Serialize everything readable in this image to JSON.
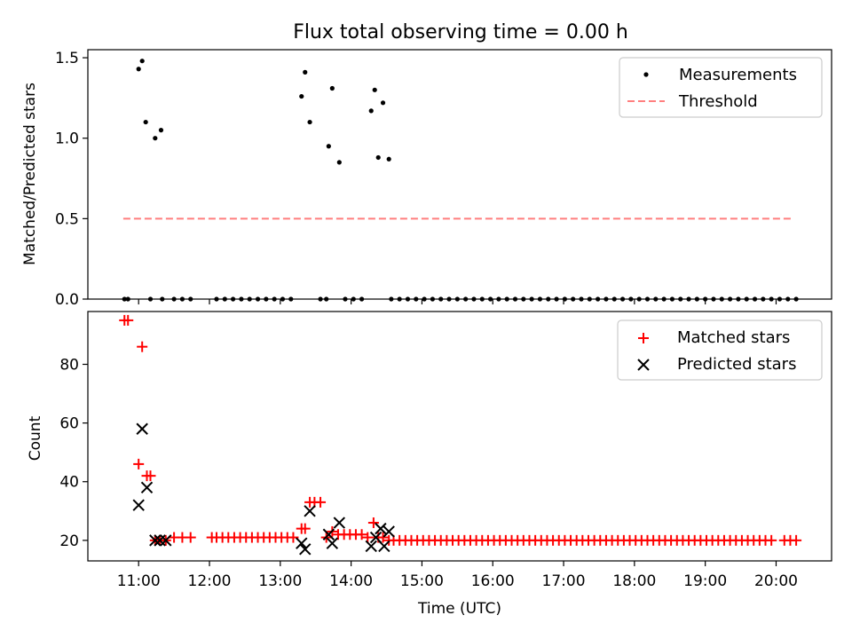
{
  "chart_data": [
    {
      "type": "scatter",
      "title": "Flux total observing time = 0.00 h",
      "xlabel": "",
      "ylabel": "Matched/Predicted stars",
      "xlim": [
        "10:17",
        "20:47"
      ],
      "ylim": [
        0,
        1.55
      ],
      "yticks": [
        0.0,
        0.5,
        1.0,
        1.5
      ],
      "ytick_labels": [
        "0.0",
        "0.5",
        "1.0",
        "1.5"
      ],
      "legend_position": "upper right",
      "legend": [
        {
          "label": "Measurements",
          "marker": "dot",
          "color": "#000000"
        },
        {
          "label": "Threshold",
          "marker": "dashed-line",
          "color": "#ff7f7f"
        }
      ],
      "series": [
        {
          "name": "Measurements",
          "color": "#000000",
          "points": [
            [
              "11:00",
              1.43
            ],
            [
              "11:03",
              1.48
            ],
            [
              "11:06",
              1.1
            ],
            [
              "11:14",
              1.0
            ],
            [
              "11:19",
              1.05
            ],
            [
              "13:18",
              1.26
            ],
            [
              "13:21",
              1.41
            ],
            [
              "13:25",
              1.1
            ],
            [
              "13:41",
              0.95
            ],
            [
              "13:44",
              1.31
            ],
            [
              "13:50",
              0.85
            ],
            [
              "14:17",
              1.17
            ],
            [
              "14:20",
              1.3
            ],
            [
              "14:23",
              0.88
            ],
            [
              "14:27",
              1.22
            ],
            [
              "14:32",
              0.87
            ],
            [
              "10:48",
              0
            ],
            [
              "10:51",
              0
            ],
            [
              "11:10",
              0
            ],
            [
              "11:20",
              0
            ],
            [
              "11:30",
              0
            ],
            [
              "11:37",
              0
            ],
            [
              "11:44",
              0
            ],
            [
              "12:06",
              0
            ],
            [
              "12:13",
              0
            ],
            [
              "12:20",
              0
            ],
            [
              "12:27",
              0
            ],
            [
              "12:34",
              0
            ],
            [
              "12:41",
              0
            ],
            [
              "12:48",
              0
            ],
            [
              "12:55",
              0
            ],
            [
              "13:02",
              0
            ],
            [
              "13:09",
              0
            ],
            [
              "13:34",
              0
            ],
            [
              "13:39",
              0
            ],
            [
              "13:55",
              0
            ],
            [
              "14:02",
              0
            ],
            [
              "14:09",
              0
            ],
            [
              "14:34",
              0
            ],
            [
              "14:41",
              0
            ],
            [
              "14:48",
              0
            ],
            [
              "14:55",
              0
            ],
            [
              "15:02",
              0
            ],
            [
              "15:09",
              0
            ],
            [
              "15:16",
              0
            ],
            [
              "15:23",
              0
            ],
            [
              "15:30",
              0
            ],
            [
              "15:37",
              0
            ],
            [
              "15:44",
              0
            ],
            [
              "15:51",
              0
            ],
            [
              "15:58",
              0
            ],
            [
              "16:05",
              0
            ],
            [
              "16:12",
              0
            ],
            [
              "16:19",
              0
            ],
            [
              "16:26",
              0
            ],
            [
              "16:33",
              0
            ],
            [
              "16:40",
              0
            ],
            [
              "16:47",
              0
            ],
            [
              "16:54",
              0
            ],
            [
              "17:01",
              0
            ],
            [
              "17:08",
              0
            ],
            [
              "17:15",
              0
            ],
            [
              "17:22",
              0
            ],
            [
              "17:29",
              0
            ],
            [
              "17:36",
              0
            ],
            [
              "17:43",
              0
            ],
            [
              "17:50",
              0
            ],
            [
              "17:57",
              0
            ],
            [
              "18:04",
              0
            ],
            [
              "18:11",
              0
            ],
            [
              "18:18",
              0
            ],
            [
              "18:25",
              0
            ],
            [
              "18:32",
              0
            ],
            [
              "18:39",
              0
            ],
            [
              "18:46",
              0
            ],
            [
              "18:53",
              0
            ],
            [
              "19:00",
              0
            ],
            [
              "19:07",
              0
            ],
            [
              "19:14",
              0
            ],
            [
              "19:21",
              0
            ],
            [
              "19:28",
              0
            ],
            [
              "19:35",
              0
            ],
            [
              "19:42",
              0
            ],
            [
              "19:49",
              0
            ],
            [
              "19:56",
              0
            ],
            [
              "20:03",
              0
            ],
            [
              "20:10",
              0
            ],
            [
              "20:17",
              0
            ]
          ]
        },
        {
          "name": "Threshold",
          "color": "#ff7f7f",
          "style": "dashed",
          "points": [
            [
              "10:47",
              0.5
            ],
            [
              "20:14",
              0.5
            ]
          ]
        }
      ]
    },
    {
      "type": "scatter",
      "title": "",
      "xlabel": "Time (UTC)",
      "ylabel": "Count",
      "xlim": [
        "10:17",
        "20:47"
      ],
      "ylim": [
        13,
        98
      ],
      "yticks": [
        20,
        40,
        60,
        80
      ],
      "ytick_labels": [
        "20",
        "40",
        "60",
        "80"
      ],
      "xticks": [
        "11:00",
        "12:00",
        "13:00",
        "14:00",
        "15:00",
        "16:00",
        "17:00",
        "18:00",
        "19:00",
        "20:00"
      ],
      "xtick_labels": [
        "11:00",
        "12:00",
        "13:00",
        "14:00",
        "15:00",
        "16:00",
        "17:00",
        "18:00",
        "19:00",
        "20:00"
      ],
      "legend_position": "upper right",
      "legend": [
        {
          "label": "Matched stars",
          "marker": "plus",
          "color": "#ff0000"
        },
        {
          "label": "Predicted stars",
          "marker": "x",
          "color": "#000000"
        }
      ],
      "series": [
        {
          "name": "Matched stars",
          "color": "#ff0000",
          "points": [
            [
              "10:48",
              95
            ],
            [
              "10:51",
              95
            ],
            [
              "11:00",
              46
            ],
            [
              "11:03",
              86
            ],
            [
              "11:07",
              42
            ],
            [
              "11:10",
              42
            ],
            [
              "11:14",
              20
            ],
            [
              "11:18",
              20
            ],
            [
              "11:23",
              20
            ],
            [
              "11:30",
              21
            ],
            [
              "11:37",
              21
            ],
            [
              "11:44",
              21
            ],
            [
              "12:02",
              21
            ],
            [
              "12:06",
              21
            ],
            [
              "12:11",
              21
            ],
            [
              "12:16",
              21
            ],
            [
              "12:21",
              21
            ],
            [
              "12:26",
              21
            ],
            [
              "12:31",
              21
            ],
            [
              "12:36",
              21
            ],
            [
              "12:41",
              21
            ],
            [
              "12:46",
              21
            ],
            [
              "12:51",
              21
            ],
            [
              "12:56",
              21
            ],
            [
              "13:01",
              21
            ],
            [
              "13:06",
              21
            ],
            [
              "13:11",
              21
            ],
            [
              "13:18",
              24
            ],
            [
              "13:21",
              24
            ],
            [
              "13:25",
              33
            ],
            [
              "13:29",
              33
            ],
            [
              "13:34",
              33
            ],
            [
              "13:39",
              21
            ],
            [
              "13:44",
              23
            ],
            [
              "13:49",
              22
            ],
            [
              "13:54",
              22
            ],
            [
              "13:59",
              22
            ],
            [
              "14:04",
              22
            ],
            [
              "14:09",
              22
            ],
            [
              "14:14",
              21
            ],
            [
              "14:19",
              26
            ],
            [
              "14:23",
              21
            ],
            [
              "14:27",
              21
            ],
            [
              "14:32",
              20
            ],
            [
              "14:36",
              20
            ],
            [
              "14:41",
              20
            ],
            [
              "14:46",
              20
            ],
            [
              "14:51",
              20
            ],
            [
              "14:56",
              20
            ],
            [
              "15:01",
              20
            ],
            [
              "15:06",
              20
            ],
            [
              "15:11",
              20
            ],
            [
              "15:16",
              20
            ],
            [
              "15:21",
              20
            ],
            [
              "15:26",
              20
            ],
            [
              "15:31",
              20
            ],
            [
              "15:36",
              20
            ],
            [
              "15:41",
              20
            ],
            [
              "15:46",
              20
            ],
            [
              "15:51",
              20
            ],
            [
              "15:56",
              20
            ],
            [
              "16:01",
              20
            ],
            [
              "16:06",
              20
            ],
            [
              "16:11",
              20
            ],
            [
              "16:16",
              20
            ],
            [
              "16:21",
              20
            ],
            [
              "16:26",
              20
            ],
            [
              "16:31",
              20
            ],
            [
              "16:36",
              20
            ],
            [
              "16:41",
              20
            ],
            [
              "16:46",
              20
            ],
            [
              "16:51",
              20
            ],
            [
              "16:56",
              20
            ],
            [
              "17:01",
              20
            ],
            [
              "17:06",
              20
            ],
            [
              "17:11",
              20
            ],
            [
              "17:16",
              20
            ],
            [
              "17:21",
              20
            ],
            [
              "17:26",
              20
            ],
            [
              "17:31",
              20
            ],
            [
              "17:36",
              20
            ],
            [
              "17:41",
              20
            ],
            [
              "17:46",
              20
            ],
            [
              "17:51",
              20
            ],
            [
              "17:56",
              20
            ],
            [
              "18:01",
              20
            ],
            [
              "18:06",
              20
            ],
            [
              "18:11",
              20
            ],
            [
              "18:16",
              20
            ],
            [
              "18:21",
              20
            ],
            [
              "18:26",
              20
            ],
            [
              "18:31",
              20
            ],
            [
              "18:36",
              20
            ],
            [
              "18:41",
              20
            ],
            [
              "18:46",
              20
            ],
            [
              "18:51",
              20
            ],
            [
              "18:56",
              20
            ],
            [
              "19:01",
              20
            ],
            [
              "19:06",
              20
            ],
            [
              "19:11",
              20
            ],
            [
              "19:16",
              20
            ],
            [
              "19:21",
              20
            ],
            [
              "19:26",
              20
            ],
            [
              "19:31",
              20
            ],
            [
              "19:36",
              20
            ],
            [
              "19:41",
              20
            ],
            [
              "19:46",
              20
            ],
            [
              "19:51",
              20
            ],
            [
              "19:56",
              20
            ],
            [
              "20:07",
              20
            ],
            [
              "20:12",
              20
            ],
            [
              "20:17",
              20
            ]
          ]
        },
        {
          "name": "Predicted stars",
          "color": "#000000",
          "points": [
            [
              "11:00",
              32
            ],
            [
              "11:03",
              58
            ],
            [
              "11:07",
              38
            ],
            [
              "11:14",
              20
            ],
            [
              "11:18",
              20
            ],
            [
              "11:23",
              20
            ],
            [
              "13:18",
              19
            ],
            [
              "13:21",
              17
            ],
            [
              "13:25",
              30
            ],
            [
              "13:41",
              22
            ],
            [
              "13:44",
              19
            ],
            [
              "13:50",
              26
            ],
            [
              "14:17",
              18
            ],
            [
              "14:21",
              21
            ],
            [
              "14:25",
              24
            ],
            [
              "14:28",
              18
            ],
            [
              "14:32",
              23
            ]
          ]
        }
      ]
    }
  ]
}
